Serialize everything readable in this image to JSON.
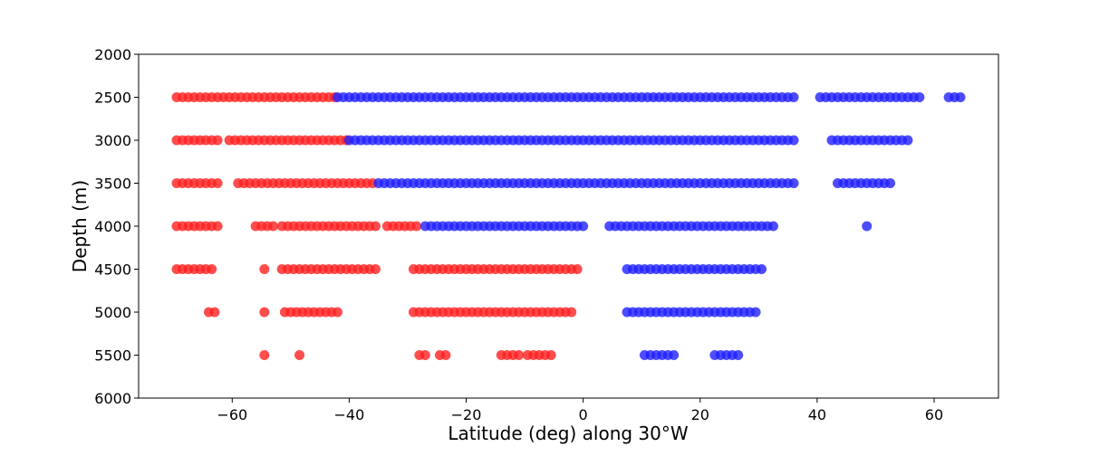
{
  "chart_data": {
    "type": "scatter",
    "title": "",
    "xlabel": "Latitude (deg) along 30$^\\circ$W",
    "xlabel_display": "Latitude (deg) along 30°W",
    "ylabel": "Depth (m)",
    "xlim": [
      -76,
      71
    ],
    "ylim": [
      6000,
      2000
    ],
    "y_inverted": true,
    "xticks": [
      -60,
      -40,
      -20,
      0,
      20,
      40,
      60
    ],
    "yticks": [
      2000,
      2500,
      3000,
      3500,
      4000,
      4500,
      5000,
      5500,
      6000
    ],
    "grid": false,
    "legend": "none",
    "colors": {
      "red": "#ff2020",
      "blue": "#2020ff"
    },
    "series": [
      {
        "color": "red",
        "runs": [
          {
            "depth": 2500,
            "from": -69.5,
            "to": -42.5
          },
          {
            "depth": 3000,
            "from": -69.5,
            "to": -62.0
          },
          {
            "depth": 3000,
            "from": -60.5,
            "to": -40.5
          },
          {
            "depth": 3500,
            "from": -69.5,
            "to": -62.0
          },
          {
            "depth": 3500,
            "from": -59.0,
            "to": -35.5
          },
          {
            "depth": 4000,
            "from": -69.5,
            "to": -62.0
          },
          {
            "depth": 4000,
            "from": -56.0,
            "to": -53.0
          },
          {
            "depth": 4000,
            "from": -51.5,
            "to": -35.0
          },
          {
            "depth": 4000,
            "from": -33.5,
            "to": -28.0
          },
          {
            "depth": 4500,
            "from": -69.5,
            "to": -63.5
          },
          {
            "depth": 4500,
            "from": -54.5,
            "to": -54.5
          },
          {
            "depth": 4500,
            "from": -51.5,
            "to": -35.0
          },
          {
            "depth": 4500,
            "from": -29.0,
            "to": -0.5
          },
          {
            "depth": 5000,
            "from": -64.0,
            "to": -62.5
          },
          {
            "depth": 5000,
            "from": -54.5,
            "to": -54.5
          },
          {
            "depth": 5000,
            "from": -51.0,
            "to": -42.0
          },
          {
            "depth": 5000,
            "from": -29.0,
            "to": -2.0
          },
          {
            "depth": 5500,
            "from": -54.5,
            "to": -54.5
          },
          {
            "depth": 5500,
            "from": -48.5,
            "to": -48.5
          },
          {
            "depth": 5500,
            "from": -28.0,
            "to": -26.5
          },
          {
            "depth": 5500,
            "from": -24.5,
            "to": -23.0
          },
          {
            "depth": 5500,
            "from": -14.0,
            "to": -11.0
          },
          {
            "depth": 5500,
            "from": -9.5,
            "to": -5.5
          }
        ]
      },
      {
        "color": "blue",
        "runs": [
          {
            "depth": 2500,
            "from": -42.0,
            "to": 36.5
          },
          {
            "depth": 2500,
            "from": 40.5,
            "to": 57.5
          },
          {
            "depth": 2500,
            "from": 62.5,
            "to": 64.5
          },
          {
            "depth": 3000,
            "from": -40.0,
            "to": 36.5
          },
          {
            "depth": 3000,
            "from": 42.5,
            "to": 55.5
          },
          {
            "depth": 3500,
            "from": -35.0,
            "to": 36.5
          },
          {
            "depth": 3500,
            "from": 43.5,
            "to": 52.5
          },
          {
            "depth": 4000,
            "from": -27.0,
            "to": 0.5
          },
          {
            "depth": 4000,
            "from": 4.5,
            "to": 32.5
          },
          {
            "depth": 4000,
            "from": 48.5,
            "to": 48.5
          },
          {
            "depth": 4500,
            "from": 7.5,
            "to": 30.5
          },
          {
            "depth": 5000,
            "from": 7.5,
            "to": 29.5
          },
          {
            "depth": 5500,
            "from": 10.5,
            "to": 15.5
          },
          {
            "depth": 5500,
            "from": 22.5,
            "to": 26.5
          }
        ]
      }
    ],
    "point_spacing_deg": 1.0
  }
}
